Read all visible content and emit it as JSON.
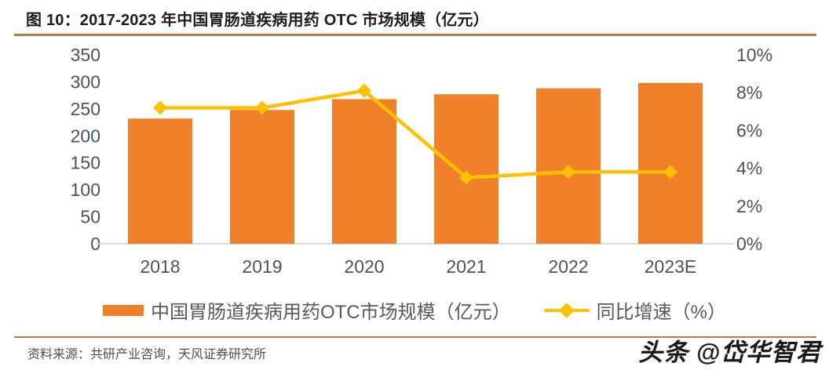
{
  "title": "图 10：2017-2023 年中国胃肠道疾病用药 OTC 市场规模（亿元）",
  "colors": {
    "bar": "#f0802a",
    "line": "#ffc000",
    "rule": "#c1763a",
    "axis_text": "#4b5260",
    "baseline": "#d6dade",
    "legend_text": "#595959"
  },
  "chart_data": {
    "type": "bar",
    "subtype": "combo-bar-line-dual-axis",
    "title": "2017-2023 年中国胃肠道疾病用药 OTC 市场规模（亿元）",
    "categories": [
      "2018",
      "2019",
      "2020",
      "2021",
      "2022",
      "2023E"
    ],
    "series": [
      {
        "name": "中国胃肠道疾病用药OTC市场规模（亿元）",
        "type": "bar",
        "axis": "left",
        "values": [
          232,
          248,
          268,
          277,
          288,
          298
        ]
      },
      {
        "name": "同比增速（%）",
        "type": "line",
        "axis": "right",
        "values": [
          7.2,
          7.2,
          8.1,
          3.5,
          3.8,
          3.8
        ]
      }
    ],
    "left_axis": {
      "min": 0,
      "max": 350,
      "step": 50,
      "ticks": [
        "350",
        "300",
        "250",
        "200",
        "150",
        "100",
        "50",
        "0"
      ]
    },
    "right_axis": {
      "min": 0,
      "max": 10,
      "step": 2,
      "ticks": [
        "10%",
        "8%",
        "6%",
        "4%",
        "2%",
        "0%"
      ]
    },
    "grid": false,
    "legend_position": "bottom"
  },
  "legend": {
    "bar_label": "中国胃肠道疾病用药OTC市场规模（亿元）",
    "line_label": "同比增速（%）"
  },
  "footer": {
    "source": "资料来源：共研产业咨询，天风证券研究所",
    "watermark": "头条 @岱华智君"
  }
}
